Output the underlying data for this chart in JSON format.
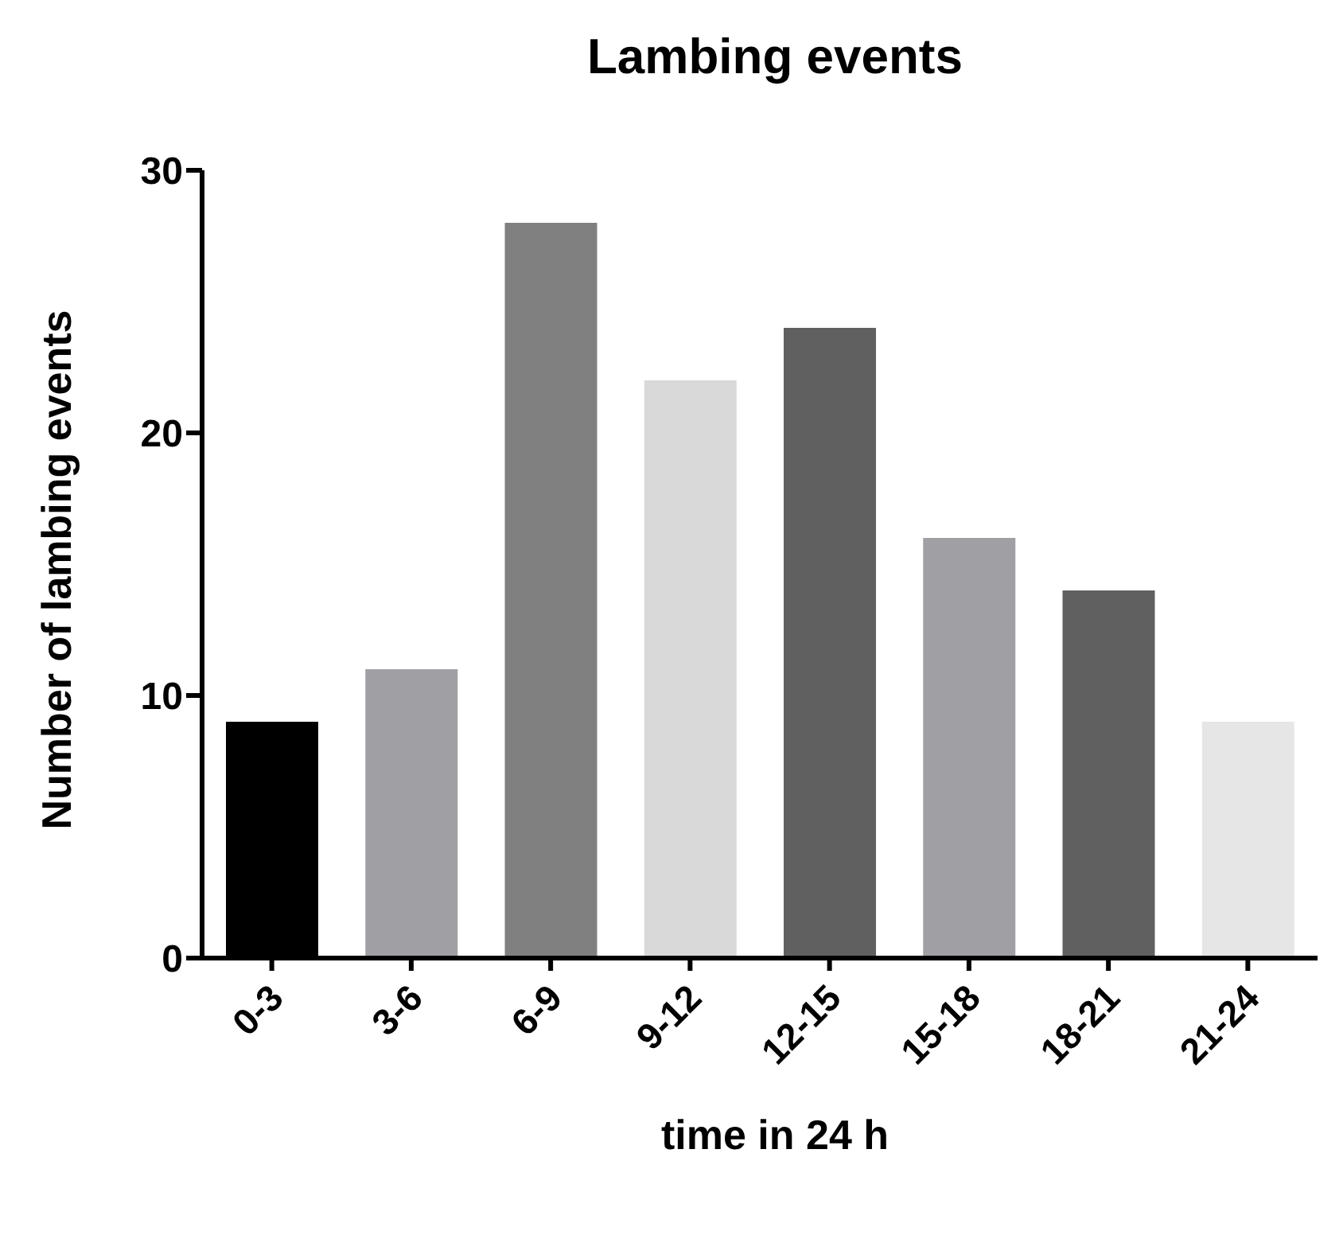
{
  "chart_data": {
    "type": "bar",
    "title": "Lambing events",
    "xlabel": "time in 24 h",
    "ylabel": "Number of lambing events",
    "categories": [
      "0-3",
      "3-6",
      "6-9",
      "9-12",
      "12-15",
      "15-18",
      "18-21",
      "21-24"
    ],
    "values": [
      9,
      11,
      28,
      22,
      24,
      16,
      14,
      9
    ],
    "colors": [
      "#000000",
      "#a0a0a4",
      "#808080",
      "#d9d9d9",
      "#606060",
      "#a0a0a4",
      "#606060",
      "#e6e6e6"
    ],
    "ylim": [
      0,
      30
    ],
    "yticks": [
      0,
      10,
      20,
      30
    ],
    "grid": false,
    "legend": false
  }
}
